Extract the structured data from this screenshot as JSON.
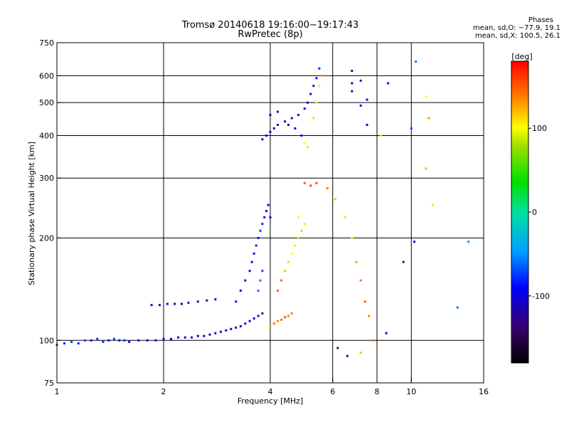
{
  "title_line1": "Tromsø 20140618  19:16:00−19:17:43",
  "title_line2": "RwPretec (8p)",
  "phase_box": {
    "title": "Phases",
    "line1": "mean, sd,O: −77.9, 19.1",
    "line2": "mean, sd,X: 100.5, 26.1"
  },
  "chart_data": {
    "type": "scatter",
    "xlabel": "Frequency [MHz]",
    "ylabel": "Stationary phase Virtual Height [km]",
    "x_scale": "log",
    "y_scale": "log",
    "xlim": [
      1,
      16
    ],
    "ylim": [
      75,
      750
    ],
    "x_ticks": [
      1,
      2,
      4,
      6,
      8,
      10,
      16
    ],
    "y_ticks": [
      75,
      100,
      200,
      300,
      400,
      500,
      600,
      750
    ],
    "x_gridlines": [
      2,
      4,
      6,
      8,
      10
    ],
    "y_gridlines": [
      100,
      200,
      300,
      400,
      500,
      600
    ],
    "colorbar": {
      "label": "[deg]",
      "range": [
        -180,
        180
      ],
      "ticks": [
        -100,
        0,
        100
      ]
    },
    "series": [
      {
        "points": [
          [
            1.0,
            97,
            -72
          ],
          [
            1.05,
            98,
            -80
          ],
          [
            1.1,
            99,
            -75
          ],
          [
            1.15,
            98,
            -85
          ],
          [
            1.2,
            100,
            -70
          ],
          [
            1.25,
            100,
            -90
          ],
          [
            1.3,
            101,
            -78
          ],
          [
            1.35,
            99,
            -82
          ],
          [
            1.4,
            100,
            -88
          ],
          [
            1.45,
            101,
            -76
          ],
          [
            1.5,
            100,
            -92
          ],
          [
            1.55,
            100,
            -80
          ],
          [
            1.6,
            99,
            -95
          ],
          [
            1.7,
            100,
            -90
          ],
          [
            1.8,
            100,
            -100
          ],
          [
            1.9,
            100,
            -95
          ],
          [
            2.0,
            101,
            -105
          ],
          [
            2.1,
            101,
            -98
          ],
          [
            2.2,
            102,
            -110
          ],
          [
            2.3,
            102,
            -100
          ],
          [
            2.4,
            102,
            -108
          ],
          [
            2.5,
            103,
            -112
          ],
          [
            2.6,
            103,
            -105
          ],
          [
            2.7,
            104,
            -110
          ],
          [
            2.8,
            105,
            -115
          ],
          [
            2.9,
            106,
            -108
          ],
          [
            3.0,
            107,
            -118
          ],
          [
            3.1,
            108,
            -110
          ],
          [
            3.2,
            109,
            -112
          ],
          [
            3.3,
            110,
            -105
          ],
          [
            3.4,
            112,
            -100
          ],
          [
            3.5,
            114,
            -95
          ],
          [
            3.6,
            116,
            -90
          ],
          [
            3.7,
            118,
            -100
          ],
          [
            3.8,
            120,
            -105
          ]
        ]
      },
      {
        "points": [
          [
            1.85,
            127,
            -115
          ],
          [
            1.95,
            127,
            -118
          ],
          [
            2.05,
            128,
            -112
          ],
          [
            2.15,
            128,
            -120
          ],
          [
            2.25,
            128,
            -115
          ],
          [
            2.35,
            129,
            -118
          ],
          [
            2.5,
            130,
            -110
          ],
          [
            2.65,
            131,
            -120
          ],
          [
            2.8,
            132,
            -115
          ]
        ]
      },
      {
        "points": [
          [
            3.2,
            130,
            -105
          ],
          [
            3.3,
            140,
            -100
          ],
          [
            3.4,
            150,
            -110
          ],
          [
            3.5,
            160,
            -95
          ],
          [
            3.55,
            170,
            -100
          ],
          [
            3.6,
            180,
            -90
          ],
          [
            3.65,
            190,
            -80
          ],
          [
            3.7,
            200,
            -85
          ],
          [
            3.75,
            210,
            -75
          ],
          [
            3.8,
            220,
            -80
          ],
          [
            3.85,
            230,
            -90
          ],
          [
            3.9,
            240,
            -95
          ],
          [
            3.95,
            250,
            -100
          ],
          [
            4.0,
            230,
            -105
          ],
          [
            3.7,
            140,
            -60
          ],
          [
            3.75,
            150,
            -55
          ],
          [
            3.8,
            160,
            -70
          ]
        ]
      },
      {
        "points": [
          [
            4.0,
            110,
            130
          ],
          [
            4.1,
            112,
            140
          ],
          [
            4.2,
            114,
            135
          ],
          [
            4.3,
            115,
            145
          ],
          [
            4.4,
            117,
            150
          ],
          [
            4.5,
            118,
            140
          ],
          [
            4.6,
            120,
            138
          ],
          [
            4.2,
            140,
            150
          ],
          [
            4.3,
            150,
            145
          ],
          [
            4.4,
            160,
            120
          ],
          [
            4.5,
            170,
            110
          ],
          [
            4.6,
            180,
            100
          ],
          [
            4.7,
            190,
            95
          ],
          [
            4.8,
            200,
            90
          ],
          [
            4.9,
            210,
            85
          ],
          [
            5.0,
            220,
            95
          ],
          [
            4.8,
            230,
            100
          ]
        ]
      },
      {
        "points": [
          [
            3.8,
            390,
            -110
          ],
          [
            3.9,
            400,
            -115
          ],
          [
            4.0,
            410,
            -120
          ],
          [
            4.1,
            420,
            -118
          ],
          [
            4.2,
            430,
            -112
          ],
          [
            4.4,
            440,
            -105
          ],
          [
            4.6,
            450,
            -110
          ],
          [
            4.8,
            460,
            -100
          ],
          [
            5.0,
            480,
            -95
          ],
          [
            5.1,
            500,
            -105
          ],
          [
            5.2,
            530,
            -100
          ],
          [
            5.3,
            560,
            -90
          ],
          [
            5.4,
            590,
            -85
          ],
          [
            5.5,
            630,
            -80
          ],
          [
            4.0,
            460,
            -120
          ],
          [
            4.2,
            470,
            -115
          ],
          [
            4.5,
            430,
            -110
          ],
          [
            4.7,
            420,
            -95
          ],
          [
            4.9,
            400,
            -100
          ],
          [
            5.0,
            380,
            100
          ],
          [
            5.1,
            370,
            110
          ],
          [
            5.3,
            450,
            90
          ],
          [
            5.4,
            500,
            95
          ],
          [
            5.5,
            560,
            105
          ],
          [
            5.6,
            600,
            130
          ]
        ]
      },
      {
        "points": [
          [
            5.0,
            290,
            150
          ],
          [
            5.2,
            285,
            160
          ],
          [
            5.4,
            290,
            155
          ],
          [
            5.8,
            280,
            140
          ],
          [
            6.1,
            260,
            120
          ],
          [
            6.5,
            230,
            110
          ],
          [
            6.8,
            200,
            100
          ],
          [
            7.0,
            170,
            130
          ],
          [
            7.2,
            150,
            140
          ],
          [
            7.4,
            130,
            150
          ],
          [
            7.6,
            118,
            135
          ],
          [
            6.2,
            95,
            -130
          ],
          [
            6.6,
            90,
            -120
          ],
          [
            7.2,
            92,
            120
          ],
          [
            7.8,
            100,
            140
          ],
          [
            8.5,
            105,
            -110
          ],
          [
            9.5,
            170,
            -130
          ],
          [
            10.2,
            195,
            -90
          ],
          [
            11.0,
            320,
            120
          ],
          [
            11.5,
            250,
            110
          ],
          [
            13.5,
            125,
            -60
          ],
          [
            14.5,
            195,
            -50
          ]
        ]
      },
      {
        "points": [
          [
            6.8,
            620,
            -120
          ],
          [
            6.8,
            570,
            -125
          ],
          [
            6.8,
            540,
            -110
          ],
          [
            7.2,
            580,
            -115
          ],
          [
            7.2,
            490,
            -100
          ],
          [
            7.5,
            510,
            -90
          ],
          [
            7.5,
            430,
            -110
          ],
          [
            8.2,
            400,
            110
          ],
          [
            8.6,
            570,
            -105
          ],
          [
            10.0,
            420,
            -70
          ],
          [
            10.3,
            660,
            -60
          ],
          [
            11.0,
            520,
            100
          ],
          [
            11.2,
            450,
            130
          ]
        ]
      }
    ]
  }
}
